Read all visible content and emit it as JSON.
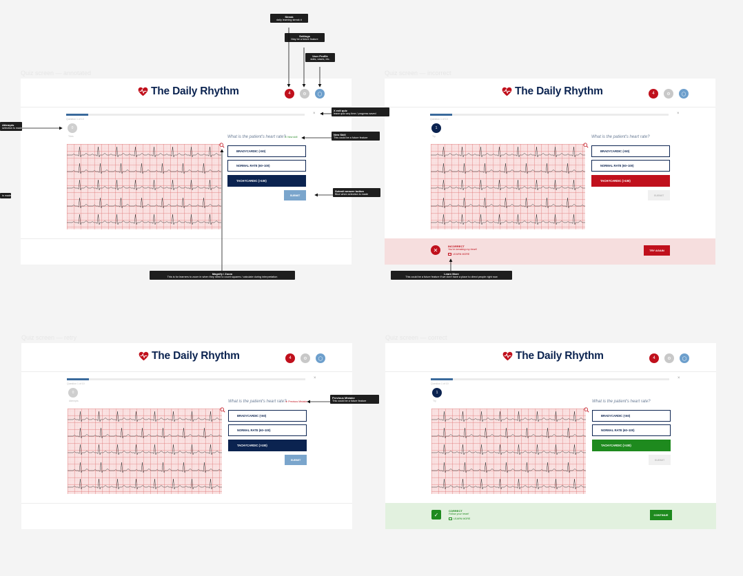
{
  "app": {
    "title": "The Daily Rhythm",
    "question": "What is the patient's heart rate?",
    "question_count": "Question 1 of 10",
    "exit_label": "×",
    "streak_count": "4",
    "options": [
      "BRADYCARDIC (<60)",
      "NORMAL RATE (60–100)",
      "TACHYCARDIC (>100)"
    ],
    "submit_label": "SUBMIT",
    "colors": {
      "navy": "#0b2350",
      "red": "#c0101c",
      "green": "#1e8a1e",
      "blue": "#7aa5cc"
    }
  },
  "frames": [
    {
      "caption": "Quiz screen — annotated",
      "attempt_label": "Tries",
      "attempt_value": "0",
      "badge": "New skill"
    },
    {
      "caption": "Quiz screen — incorrect",
      "attempt_label": "Try",
      "attempt_value": "1",
      "feedback": {
        "title": "INCORRECT",
        "subtitle": "You're breaking my heart!",
        "learn": "LEARN MORE",
        "button": "TRY AGAIN"
      }
    },
    {
      "caption": "Quiz screen — retry",
      "attempt_label": "Attempts",
      "attempt_value": "0",
      "badge": "Previous Mistake"
    },
    {
      "caption": "Quiz screen — correct",
      "attempt_label": "Try",
      "attempt_value": "1",
      "feedback": {
        "title": "CORRECT",
        "subtitle": "Follow your heart!",
        "learn": "LEARN MORE",
        "button": "CONTINUE"
      }
    }
  ],
  "annotations": {
    "streak": {
      "title": "Streak",
      "desc": "daily learning streak #"
    },
    "settings": {
      "title": "Settings",
      "desc": "May be a future feature"
    },
    "profile": {
      "title": "User Profile",
      "desc": "stats, cases, etc."
    },
    "exit": {
      "title": "X exit quiz",
      "desc": "leave quiz any time / progress saved"
    },
    "attempts": {
      "title": "Attempts",
      "desc": "selection is made"
    },
    "left_note": {
      "desc": "is made"
    },
    "new_skill": {
      "title": "New Skill",
      "desc": "This could be a future feature"
    },
    "submit": {
      "title": "Submit answer button",
      "desc": "Blue when selection is made"
    },
    "magnify": {
      "title": "Magnify / Zoom",
      "desc": "This is for learners to zoom in when they need to count squares / calculate during interpretation"
    },
    "learn_more": {
      "title": "Learn More",
      "desc": "This could be a future feature if we don't have a place to direct people right now"
    },
    "previous": {
      "title": "Previous Mistake",
      "desc": "This could be a future feature"
    }
  }
}
